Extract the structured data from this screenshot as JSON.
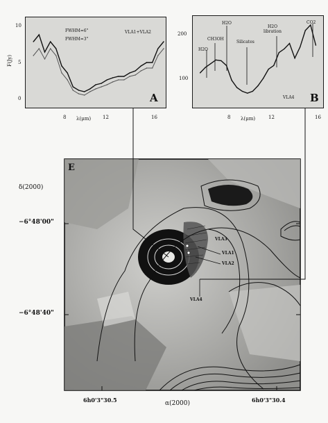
{
  "panel_a": {
    "letter": "A",
    "y_label": "F(Jy)",
    "x_label": "λ(μm)",
    "y_ticks": [
      "10",
      "5",
      "0"
    ],
    "x_ticks": [
      "8",
      "12",
      "16"
    ],
    "legend": [
      "FWHM=6\"",
      "FWHM=3\""
    ],
    "source": "VLA1+VLA2"
  },
  "panel_b": {
    "letter": "B",
    "x_label": "λ(μm)",
    "y_ticks": [
      "200",
      "100"
    ],
    "x_ticks": [
      "8",
      "12",
      "16"
    ],
    "features": [
      "H2O",
      "CH3OH",
      "H2O",
      "Silicates",
      "H2O libration",
      "CO2"
    ],
    "source": "VLA4"
  },
  "panel_e": {
    "letter": "E",
    "dec_label": "δ(2000)",
    "dec_ticks": [
      "−6°48'00\"",
      "−6°48'40\""
    ],
    "ra_label": "α(2000)",
    "ra_ticks": [
      "6h0'3\"30.5",
      "6h0'3\"30.4"
    ],
    "sources": [
      "VLA1",
      "VLA2",
      "VLA4"
    ],
    "extra_label": "VLA3"
  },
  "chart_data": [
    {
      "type": "line",
      "panel": "A",
      "x": [
        5.5,
        6,
        6.5,
        7,
        7.5,
        8,
        8.5,
        9,
        9.5,
        10,
        10.5,
        11,
        11.5,
        12,
        12.5,
        13,
        13.5,
        14,
        14.5,
        15,
        15.5,
        16,
        16.5,
        17
      ],
      "series": [
        {
          "name": "FWHM=6\"",
          "values": [
            8,
            9,
            6.5,
            8,
            7,
            4.5,
            3.5,
            1.5,
            1,
            0.8,
            1.2,
            1.8,
            2,
            2.5,
            2.8,
            3,
            3,
            3.5,
            3.8,
            4.5,
            5,
            5,
            7,
            8
          ]
        },
        {
          "name": "FWHM=3\"",
          "values": [
            6,
            7,
            5.5,
            7,
            6,
            3.5,
            2.5,
            1,
            0.5,
            0.3,
            0.8,
            1.2,
            1.5,
            1.8,
            2.2,
            2.5,
            2.5,
            3,
            3.2,
            3.8,
            4.2,
            4.2,
            6,
            7
          ]
        }
      ],
      "xlabel": "λ(μm)",
      "ylabel": "F(Jy)",
      "xlim": [
        5,
        17
      ],
      "ylim": [
        -1,
        11
      ]
    },
    {
      "type": "line",
      "panel": "B",
      "x": [
        5.5,
        6,
        6.5,
        7,
        7.5,
        8,
        8.5,
        9,
        9.5,
        10,
        10.5,
        11,
        11.5,
        12,
        12.5,
        13,
        13.5,
        14,
        14.5,
        15,
        15.5,
        16,
        16.5
      ],
      "series": [
        {
          "values": [
            85,
            100,
            110,
            120,
            118,
            105,
            65,
            45,
            35,
            30,
            35,
            50,
            70,
            95,
            105,
            140,
            150,
            165,
            125,
            155,
            200,
            215,
            160
          ]
        }
      ],
      "xlabel": "λ(μm)",
      "xlim": [
        5,
        17
      ],
      "ylim": [
        0,
        230
      ]
    }
  ]
}
